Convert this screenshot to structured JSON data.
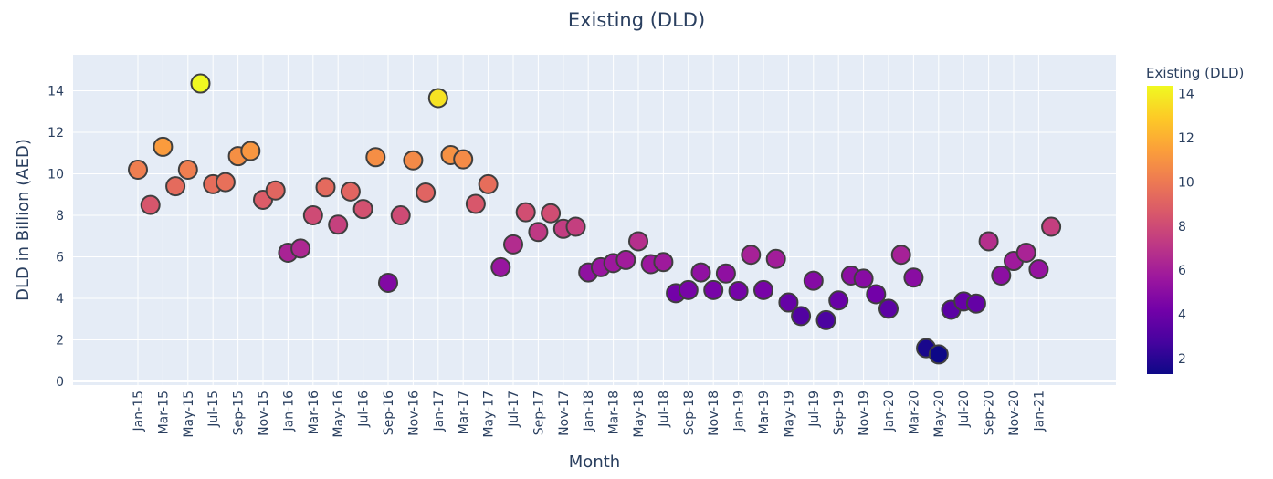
{
  "chart_data": {
    "type": "scatter",
    "title": "Existing (DLD)",
    "xlabel": "Month",
    "ylabel": "DLD in Billion (AED)",
    "ylim": [
      -0.3,
      15.6
    ],
    "y_ticks": [
      0,
      2,
      4,
      6,
      8,
      10,
      12,
      14
    ],
    "x_tick_labels": [
      "Jan-15",
      "Mar-15",
      "May-15",
      "Jul-15",
      "Sep-15",
      "Nov-15",
      "Jan-16",
      "Mar-16",
      "May-16",
      "Jul-16",
      "Sep-16",
      "Nov-16",
      "Jan-17",
      "Mar-17",
      "May-17",
      "Jul-17",
      "Sep-17",
      "Nov-17",
      "Jan-18",
      "Mar-18",
      "May-18",
      "Jul-18",
      "Sep-18",
      "Nov-18",
      "Jan-19",
      "Mar-19",
      "May-19",
      "Jul-19",
      "Sep-19",
      "Nov-19",
      "Jan-20",
      "Mar-20",
      "May-20",
      "Jul-20",
      "Sep-20",
      "Nov-20",
      "Jan-21"
    ],
    "grid": true,
    "colorbar": {
      "title": "Existing (DLD)",
      "range": [
        1.3,
        14.35
      ],
      "ticks": [
        2,
        4,
        6,
        8,
        10,
        12,
        14
      ],
      "colorscale": [
        "#0d0887",
        "#46039f",
        "#7201a8",
        "#9c179e",
        "#bd3786",
        "#d8576b",
        "#ed7953",
        "#fb9f3a",
        "#fdca26",
        "#f0f921"
      ]
    },
    "marker_outline_color": "#3f3f3f",
    "x": [
      "Jan-15",
      "Feb-15",
      "Mar-15",
      "Apr-15",
      "May-15",
      "Jun-15",
      "Jul-15",
      "Aug-15",
      "Sep-15",
      "Oct-15",
      "Nov-15",
      "Dec-15",
      "Jan-16",
      "Feb-16",
      "Mar-16",
      "Apr-16",
      "May-16",
      "Jun-16",
      "Jul-16",
      "Aug-16",
      "Sep-16",
      "Oct-16",
      "Nov-16",
      "Dec-16",
      "Jan-17",
      "Feb-17",
      "Mar-17",
      "Apr-17",
      "May-17",
      "Jun-17",
      "Jul-17",
      "Aug-17",
      "Sep-17",
      "Oct-17",
      "Nov-17",
      "Dec-17",
      "Jan-18",
      "Feb-18",
      "Mar-18",
      "Apr-18",
      "May-18",
      "Jun-18",
      "Jul-18",
      "Aug-18",
      "Sep-18",
      "Oct-18",
      "Nov-18",
      "Dec-18",
      "Jan-19",
      "Feb-19",
      "Mar-19",
      "Apr-19",
      "May-19",
      "Jun-19",
      "Jul-19",
      "Aug-19",
      "Sep-19",
      "Oct-19",
      "Nov-19",
      "Dec-19",
      "Jan-20",
      "Feb-20",
      "Mar-20",
      "Apr-20",
      "May-20",
      "Jun-20",
      "Jul-20",
      "Aug-20",
      "Sep-20",
      "Oct-20",
      "Nov-20",
      "Dec-20",
      "Jan-21",
      "Feb-21"
    ],
    "y": [
      10.2,
      8.5,
      11.3,
      9.4,
      10.2,
      14.35,
      9.5,
      9.6,
      10.85,
      11.1,
      8.75,
      9.2,
      6.2,
      6.4,
      8.0,
      9.35,
      7.55,
      9.15,
      8.3,
      10.8,
      4.75,
      8.0,
      10.65,
      9.1,
      13.65,
      10.9,
      10.7,
      8.55,
      9.5,
      5.5,
      6.6,
      8.15,
      7.2,
      8.1,
      7.35,
      7.45,
      5.25,
      5.5,
      5.7,
      5.85,
      6.75,
      5.65,
      5.75,
      4.25,
      4.4,
      5.25,
      4.4,
      5.2,
      4.35,
      6.1,
      4.4,
      5.9,
      3.8,
      3.15,
      4.85,
      2.95,
      3.9,
      5.1,
      4.95,
      4.2,
      3.5,
      6.1,
      5.0,
      1.6,
      1.3,
      3.45,
      3.85,
      3.75,
      6.75,
      5.1,
      5.8,
      6.2,
      5.4,
      7.45
    ]
  }
}
